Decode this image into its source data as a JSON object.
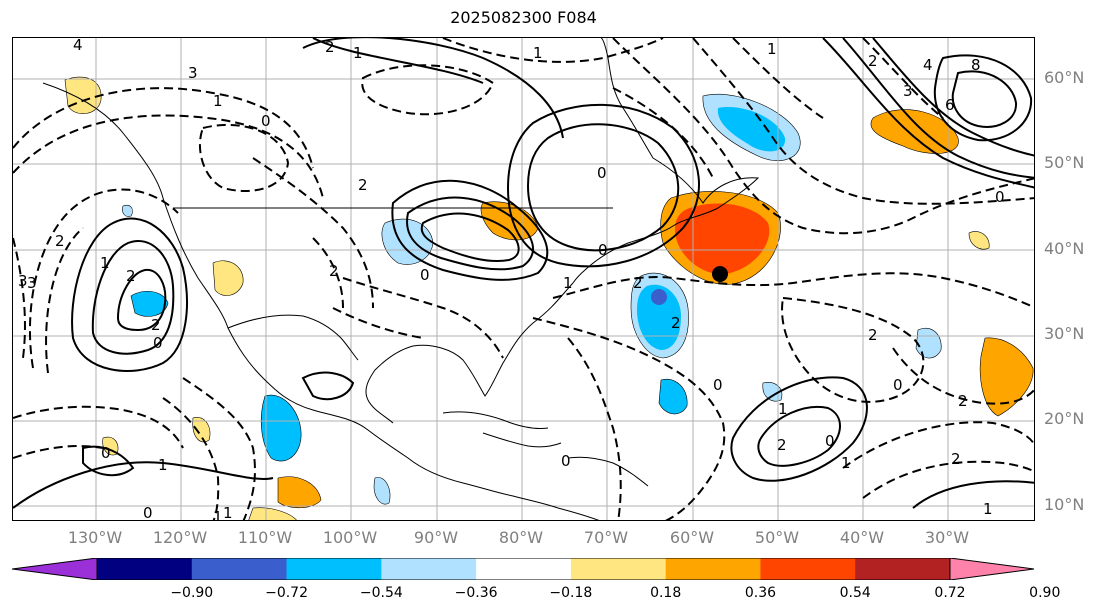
{
  "title": "2025082300 F084",
  "lat_labels": [
    "60°N",
    "50°N",
    "40°N",
    "30°N",
    "20°N",
    "10°N"
  ],
  "lon_labels": [
    "130°W",
    "120°W",
    "110°W",
    "100°W",
    "90°W",
    "80°W",
    "70°W",
    "60°W",
    "50°W",
    "40°W",
    "30°W"
  ],
  "colorbar": {
    "ticks": [
      "−0.90",
      "−0.72",
      "−0.54",
      "−0.36",
      "−0.18",
      "0.18",
      "0.36",
      "0.54",
      "0.72",
      "0.90"
    ],
    "colors": [
      "#9b30d9",
      "#000080",
      "#3a5fcd",
      "#00bfff",
      "#b0e2ff",
      "#ffffff",
      "#ffe680",
      "#ffa500",
      "#ff4500",
      "#b22222",
      "#ff82ab"
    ]
  },
  "contour_labels": [
    "4",
    "3",
    "1",
    "0",
    "2",
    "1",
    "2",
    "0",
    "2",
    "1",
    "2",
    "3",
    "0",
    "2",
    "0",
    "1",
    "0",
    "1",
    "2",
    "4",
    "3",
    "6",
    "8",
    "0",
    "2",
    "2",
    "0",
    "1",
    "2",
    "0",
    "1",
    "1",
    "0",
    "2",
    "2",
    "1",
    "0",
    "1",
    "0",
    "3",
    "2",
    "1",
    "2",
    "0",
    "1"
  ],
  "colors": {
    "marker": "#000000",
    "gridline": "#b0b0b0"
  }
}
